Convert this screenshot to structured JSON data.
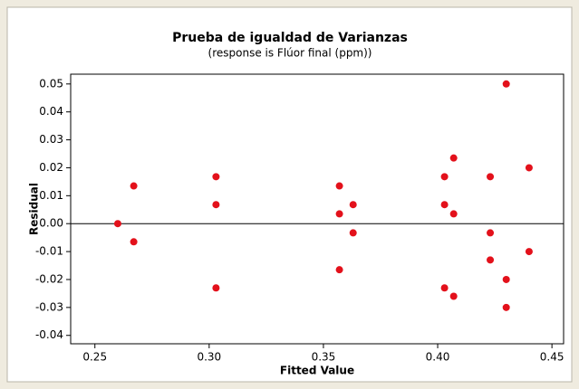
{
  "chart_data": {
    "type": "scatter",
    "title": "Prueba de igualdad de Varianzas",
    "subtitle": "(response is Flúor final (ppm))",
    "x_label": "Fitted Value",
    "y_label": "Residual",
    "series": [
      {
        "color": "#e3111b",
        "x": [
          0.26,
          0.267,
          0.267,
          0.303,
          0.303,
          0.303,
          0.357,
          0.357,
          0.357,
          0.363,
          0.363,
          0.403,
          0.403,
          0.403,
          0.407,
          0.407,
          0.407,
          0.423,
          0.423,
          0.423,
          0.43,
          0.43,
          0.43,
          0.44,
          0.44
        ],
        "values": [
          0.0,
          0.0135,
          -0.0065,
          0.0168,
          0.0068,
          -0.023,
          0.0135,
          0.0035,
          -0.0165,
          0.0068,
          -0.0033,
          0.0168,
          0.0068,
          -0.023,
          0.0235,
          0.0035,
          -0.026,
          0.0168,
          -0.0033,
          -0.013,
          0.05,
          -0.02,
          -0.03,
          0.02,
          -0.01
        ]
      }
    ],
    "reference_line": 0,
    "xlim": [
      0.2394,
      0.4551
    ],
    "ylim": [
      -0.043,
      0.0535
    ],
    "xticks": [
      0.25,
      {
        "value": 0.3,
        "label": "0.30"
      },
      0.35,
      {
        "value": 0.4,
        "label": "0.40"
      },
      0.45
    ],
    "yticks": [
      -0.04,
      -0.03,
      -0.02,
      -0.01,
      {
        "value": 0,
        "label": "0.00"
      },
      0.01,
      0.02,
      0.03,
      0.04,
      0.05
    ]
  }
}
